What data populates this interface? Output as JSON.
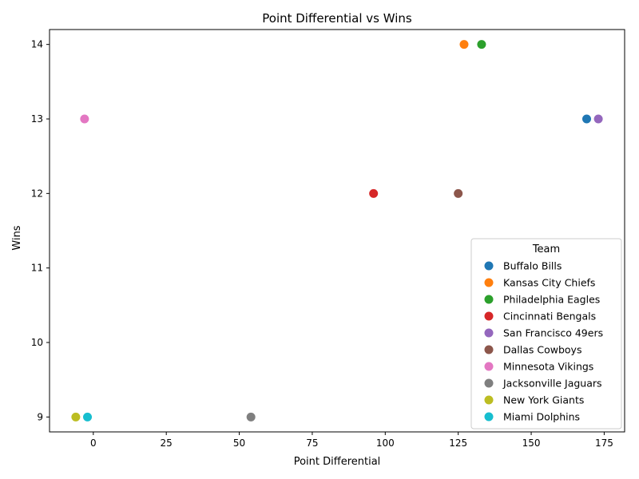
{
  "chart_data": {
    "type": "scatter",
    "title": "Point Differential vs Wins",
    "xlabel": "Point Differential",
    "ylabel": "Wins",
    "xlim": [
      -15,
      182
    ],
    "ylim": [
      8.8,
      14.2
    ],
    "xticks": [
      0,
      25,
      50,
      75,
      100,
      125,
      150,
      175
    ],
    "yticks": [
      9,
      10,
      11,
      12,
      13,
      14
    ],
    "grid": false,
    "legend_title": "Team",
    "legend_position": "lower-right",
    "series": [
      {
        "name": "Buffalo Bills",
        "color": "#1f77b4",
        "x": 169,
        "y": 13
      },
      {
        "name": "Kansas City Chiefs",
        "color": "#ff7f0e",
        "x": 127,
        "y": 14
      },
      {
        "name": "Philadelphia Eagles",
        "color": "#2ca02c",
        "x": 133,
        "y": 14
      },
      {
        "name": "Cincinnati Bengals",
        "color": "#d62728",
        "x": 96,
        "y": 12
      },
      {
        "name": "San Francisco 49ers",
        "color": "#9467bd",
        "x": 173,
        "y": 13
      },
      {
        "name": "Dallas Cowboys",
        "color": "#8c564b",
        "x": 125,
        "y": 12
      },
      {
        "name": "Minnesota Vikings",
        "color": "#e377c2",
        "x": -3,
        "y": 13
      },
      {
        "name": "Jacksonville Jaguars",
        "color": "#7f7f7f",
        "x": 54,
        "y": 9
      },
      {
        "name": "New York Giants",
        "color": "#bcbd22",
        "x": -6,
        "y": 9
      },
      {
        "name": "Miami Dolphins",
        "color": "#17becf",
        "x": -2,
        "y": 9
      }
    ]
  }
}
